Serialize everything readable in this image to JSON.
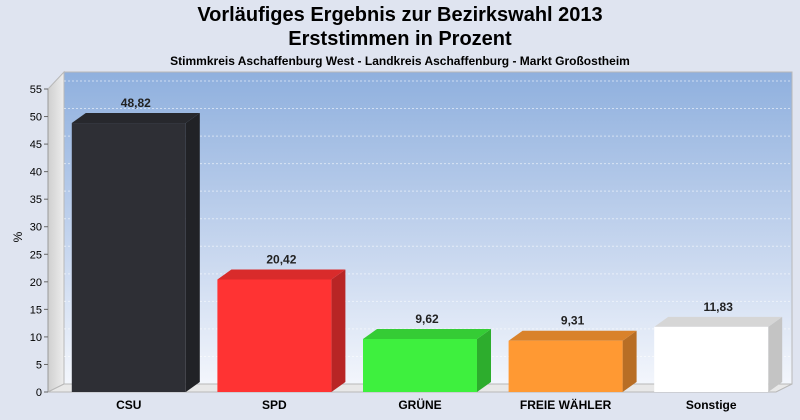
{
  "chart_data": {
    "type": "bar",
    "title": "Vorläufiges Ergebnis zur Bezirkswahl 2013",
    "subtitle": "Erststimmen in Prozent",
    "subsubtitle": "Stimmkreis Aschaffenburg West - Landkreis Aschaffenburg - Markt Großostheim",
    "xlabel": "",
    "ylabel": "%",
    "ylim": [
      0,
      55
    ],
    "yticks": [
      0,
      5,
      10,
      15,
      20,
      25,
      30,
      35,
      40,
      45,
      50,
      55
    ],
    "grid": true,
    "categories": [
      "CSU",
      "SPD",
      "GRÜNE",
      "FREIE WÄHLER",
      "Sonstige"
    ],
    "values": [
      48.82,
      20.42,
      9.62,
      9.31,
      11.83
    ],
    "value_labels": [
      "48,82",
      "20,42",
      "9,62",
      "9,31",
      "11,83"
    ],
    "colors": [
      "#2e2f35",
      "#ff3333",
      "#3ef03e",
      "#ff9933",
      "#ffffff"
    ]
  }
}
